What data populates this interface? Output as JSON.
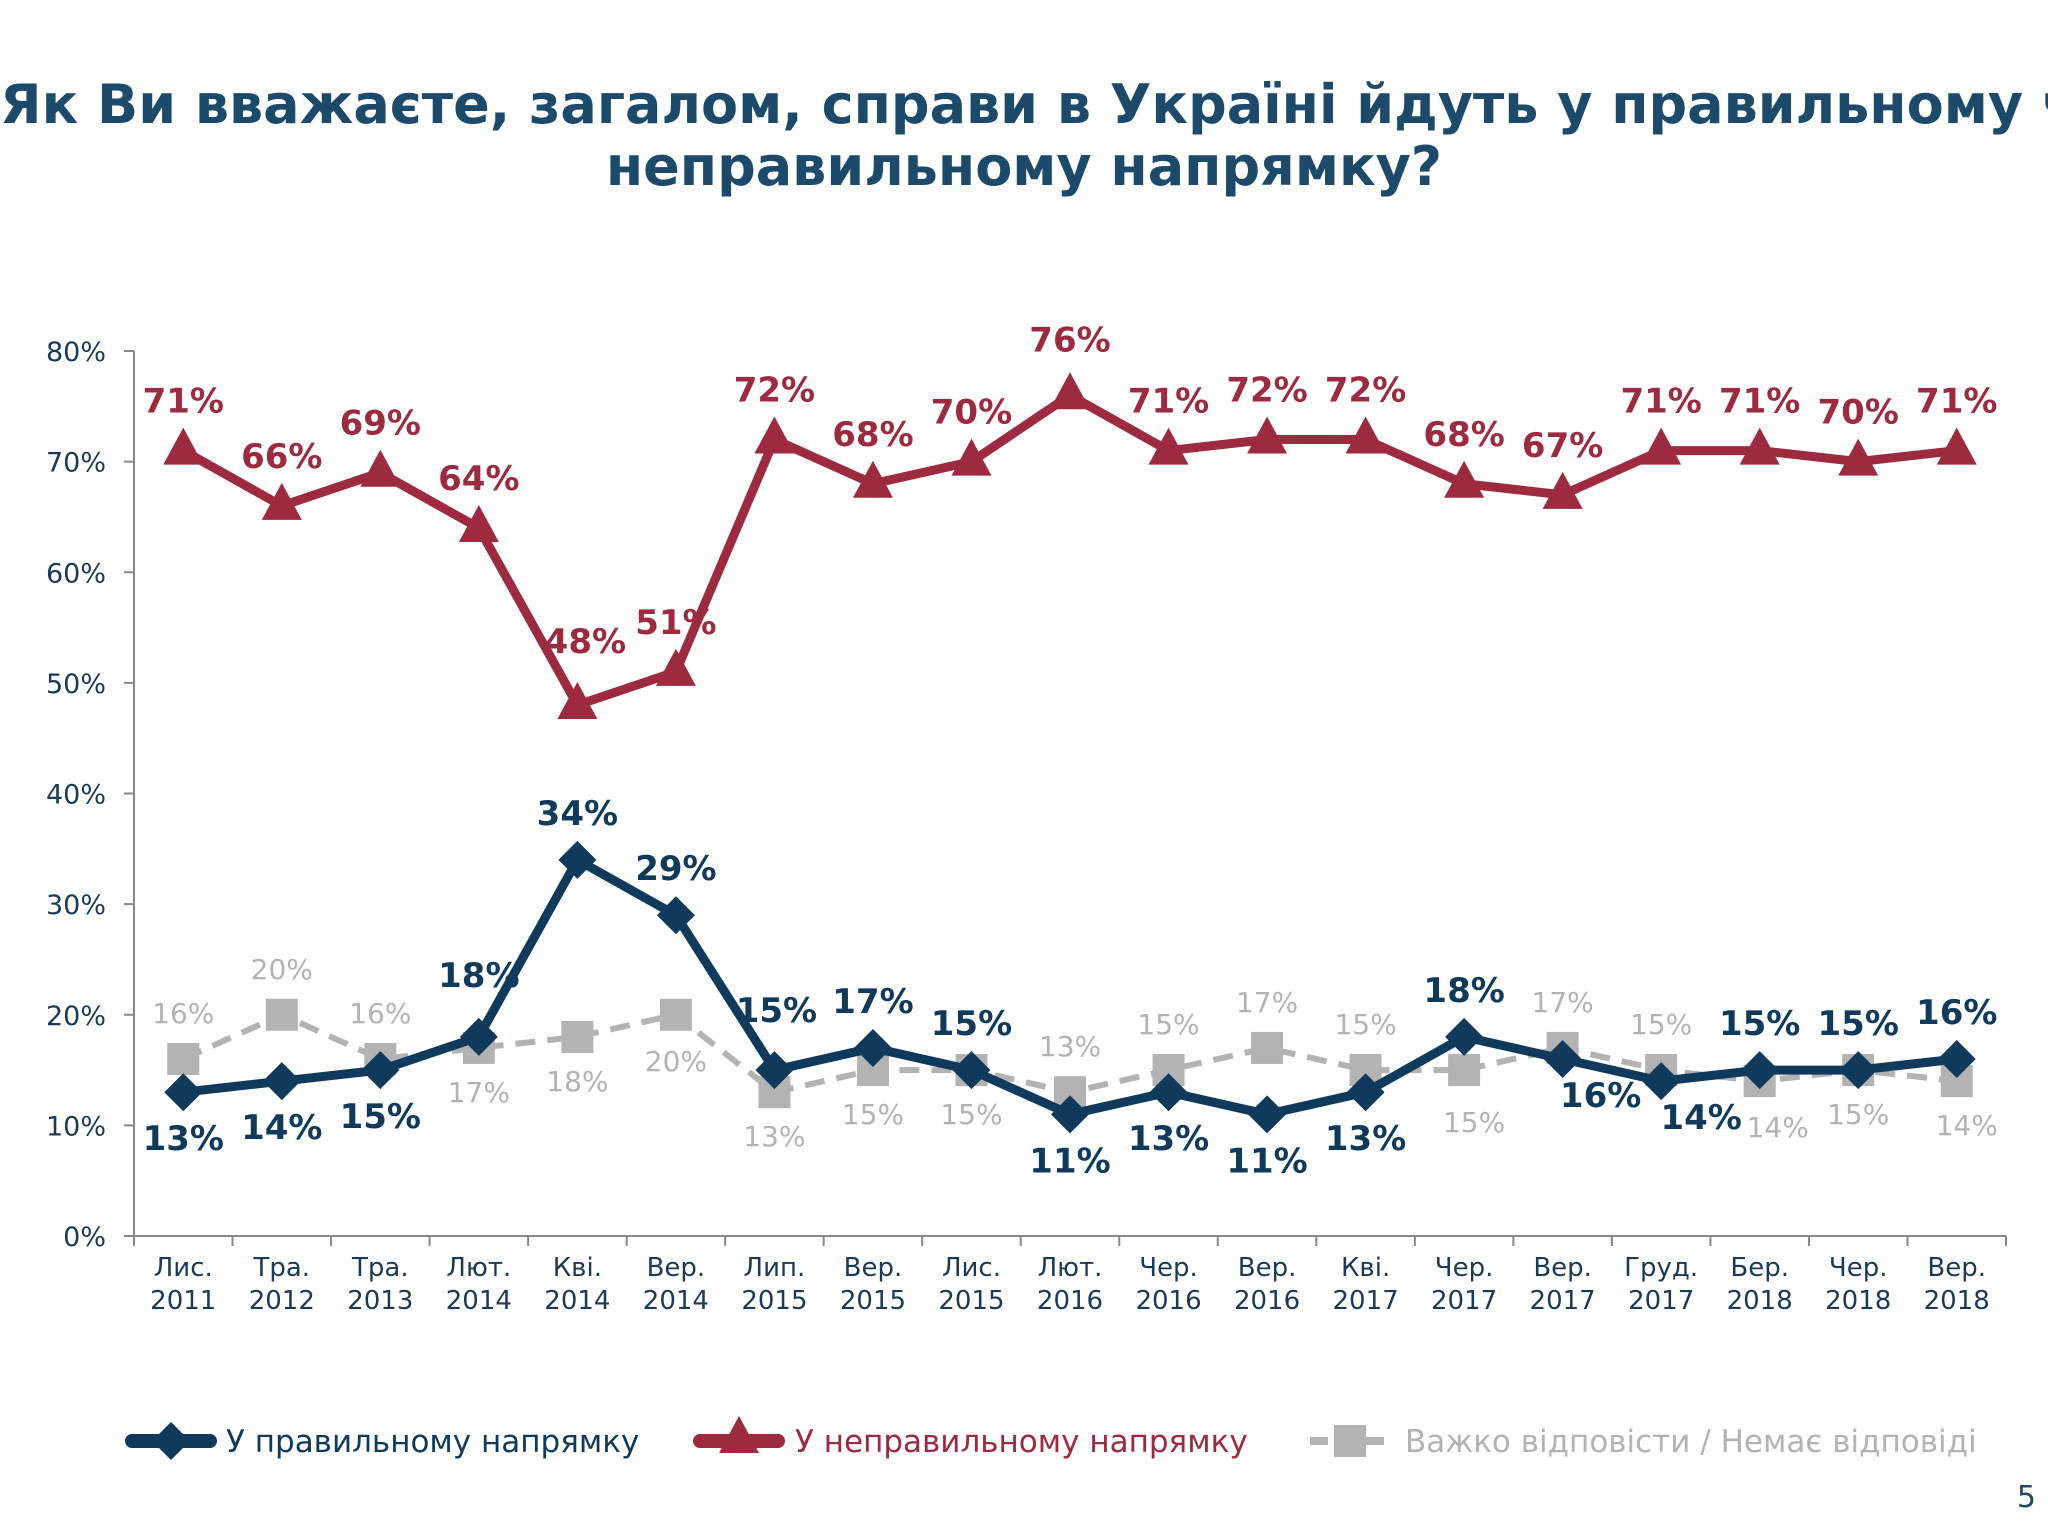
{
  "title_line1": "Як Ви вважаєте, загалом, справи в Україні йдуть у правильному чи",
  "title_line2": "неправильному напрямку?",
  "page_number": "5",
  "colors": {
    "right": "#0f3a5c",
    "wrong": "#9e2a3f",
    "hard": "#b3b3b3"
  },
  "chart_data": {
    "type": "line",
    "title": "Як Ви вважаєте, загалом, справи в Україні йдуть у правильному чи неправильному напрямку?",
    "ylim": [
      0,
      80
    ],
    "yticks": [
      "0%",
      "10%",
      "20%",
      "30%",
      "40%",
      "50%",
      "60%",
      "70%",
      "80%"
    ],
    "legend_position": "bottom",
    "grid": false,
    "categories": [
      [
        "Лис.",
        "2011"
      ],
      [
        "Тра.",
        "2012"
      ],
      [
        "Тра.",
        "2013"
      ],
      [
        "Лют.",
        "2014"
      ],
      [
        "Кві.",
        "2014"
      ],
      [
        "Вер.",
        "2014"
      ],
      [
        "Лип.",
        "2015"
      ],
      [
        "Вер.",
        "2015"
      ],
      [
        "Лис.",
        "2015"
      ],
      [
        "Лют.",
        "2016"
      ],
      [
        "Чер.",
        "2016"
      ],
      [
        "Вер.",
        "2016"
      ],
      [
        "Кві.",
        "2017"
      ],
      [
        "Чер.",
        "2017"
      ],
      [
        "Вер.",
        "2017"
      ],
      [
        "Груд.",
        "2017"
      ],
      [
        "Бер.",
        "2018"
      ],
      [
        "Чер.",
        "2018"
      ],
      [
        "Вер.",
        "2018"
      ]
    ],
    "series": [
      {
        "name": "У правильному напрямку",
        "marker": "diamond",
        "values": [
          13,
          14,
          15,
          18,
          34,
          29,
          15,
          17,
          15,
          11,
          13,
          11,
          13,
          18,
          16,
          14,
          15,
          15,
          16
        ],
        "labels": [
          "13%",
          "14%",
          "15%",
          "18%",
          "34%",
          "29%",
          "15%",
          "17%",
          "15%",
          "11%",
          "13%",
          "11%",
          "13%",
          "18%",
          "16%",
          "14%",
          "15%",
          "15%",
          "16%"
        ]
      },
      {
        "name": "У неправильному напрямку",
        "marker": "triangle",
        "values": [
          71,
          66,
          69,
          64,
          48,
          51,
          72,
          68,
          70,
          76,
          71,
          72,
          72,
          68,
          67,
          71,
          71,
          70,
          71
        ],
        "labels": [
          "71%",
          "66%",
          "69%",
          "64%",
          "48%",
          "51%",
          "72%",
          "68%",
          "70%",
          "76%",
          "71%",
          "72%",
          "72%",
          "68%",
          "67%",
          "71%",
          "71%",
          "70%",
          "71%"
        ]
      },
      {
        "name": "Важко відповісти / Немає відповіді",
        "marker": "square",
        "dashed": true,
        "values": [
          16,
          20,
          16,
          17,
          18,
          20,
          13,
          15,
          15,
          13,
          15,
          17,
          15,
          15,
          17,
          15,
          14,
          15,
          14
        ],
        "labels": [
          "16%",
          "20%",
          "16%",
          "17%",
          "18%",
          "20%",
          "13%",
          "15%",
          "15%",
          "13%",
          "15%",
          "17%",
          "15%",
          "15%",
          "17%",
          "15%",
          "14%",
          "15%",
          "14%"
        ]
      }
    ]
  }
}
